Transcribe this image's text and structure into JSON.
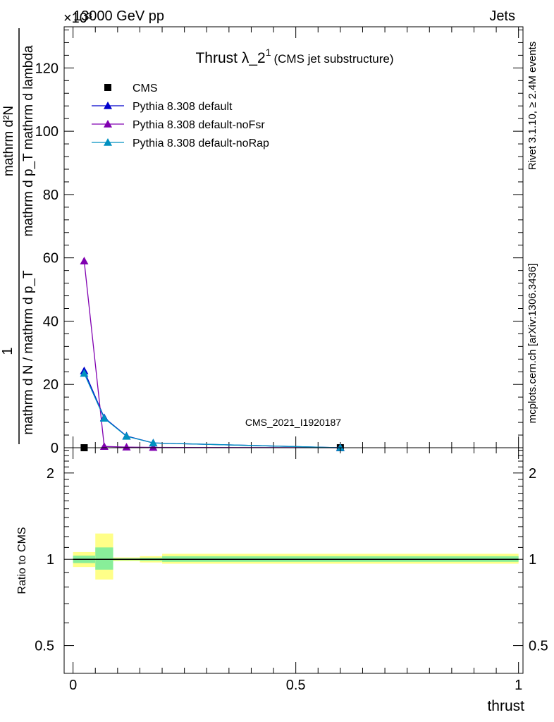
{
  "header": {
    "left_label": "13000 GeV pp",
    "right_label": "Jets",
    "exponent_label": "×10³"
  },
  "side": {
    "top_label": "Rivet 3.1.10, ≥ 2.4M events",
    "bottom_label": "mcplots.cern.ch [arXiv:1306.3436]"
  },
  "colors": {
    "cms": "#000000",
    "default": "#0000cc",
    "noFsr": "#8000b0",
    "noRap": "#0090c0",
    "band_yellow": "#ffff88",
    "band_green": "#88ee99"
  },
  "chart_data": [
    {
      "type": "line",
      "title_main": "Thrust λ_2",
      "title_sup": "1",
      "title_sub": "(CMS jet substructure)",
      "ylabel_num": "mathrm d²N",
      "ylabel_den": "mathrm d p_T mathrm d lambda",
      "ylabel_frac1": "1",
      "ylabel_frac_den": "mathrm d N / mathrm d p_T",
      "ylim": [
        0,
        133
      ],
      "yticks": [
        0,
        20,
        40,
        60,
        80,
        100,
        120
      ],
      "ytick_labels": [
        "0",
        "20",
        "40",
        "60",
        "80",
        "100",
        "120"
      ],
      "watermark": "CMS_2021_I1920187",
      "legend_position": "top-left",
      "series": [
        {
          "name": "CMS",
          "key": "cms",
          "marker": "square",
          "line": false,
          "x": [
            0.025,
            0.6
          ],
          "y": [
            0.0,
            0.0
          ]
        },
        {
          "name": "Pythia 8.308 default",
          "key": "default",
          "marker": "triangle",
          "line": true,
          "x": [
            0.025,
            0.07,
            0.12,
            0.18,
            0.6
          ],
          "y": [
            24.3,
            9.5,
            3.7,
            1.5,
            0.0
          ]
        },
        {
          "name": "Pythia 8.308 default-noFsr",
          "key": "noFsr",
          "marker": "triangle",
          "line": true,
          "x": [
            0.025,
            0.07,
            0.12,
            0.18,
            0.6
          ],
          "y": [
            59.0,
            0.4,
            0.2,
            0.1,
            0.0
          ]
        },
        {
          "name": "Pythia 8.308 default-noRap",
          "key": "noRap",
          "marker": "triangle",
          "line": true,
          "x": [
            0.025,
            0.07,
            0.12,
            0.18,
            0.6
          ],
          "y": [
            23.5,
            9.3,
            3.6,
            1.5,
            0.0
          ]
        }
      ]
    },
    {
      "type": "line",
      "ylabel": "Ratio to CMS",
      "xlabel": "thrust",
      "xlim": [
        -0.02,
        1.01
      ],
      "ylim": [
        0.4,
        2.45
      ],
      "log_y": true,
      "yticks": [
        0.5,
        1,
        2
      ],
      "ytick_labels": [
        "0.5",
        "1",
        "2"
      ],
      "xticks": [
        0,
        0.5,
        1
      ],
      "xtick_labels": [
        "0",
        "0.5",
        "1"
      ],
      "reference": 1.0,
      "bands": [
        {
          "x0": 0.0,
          "x1": 0.05,
          "yellow": [
            0.94,
            1.06
          ],
          "green": [
            0.97,
            1.03
          ]
        },
        {
          "x0": 0.05,
          "x1": 0.09,
          "yellow": [
            0.85,
            1.23
          ],
          "green": [
            0.92,
            1.1
          ]
        },
        {
          "x0": 0.09,
          "x1": 0.15,
          "yellow": [
            0.985,
            1.015
          ],
          "green": [
            0.992,
            1.008
          ]
        },
        {
          "x0": 0.15,
          "x1": 0.2,
          "yellow": [
            0.975,
            1.025
          ],
          "green": [
            0.988,
            1.012
          ]
        },
        {
          "x0": 0.2,
          "x1": 1.0,
          "yellow": [
            0.965,
            1.045
          ],
          "green": [
            0.98,
            1.025
          ]
        }
      ]
    }
  ]
}
